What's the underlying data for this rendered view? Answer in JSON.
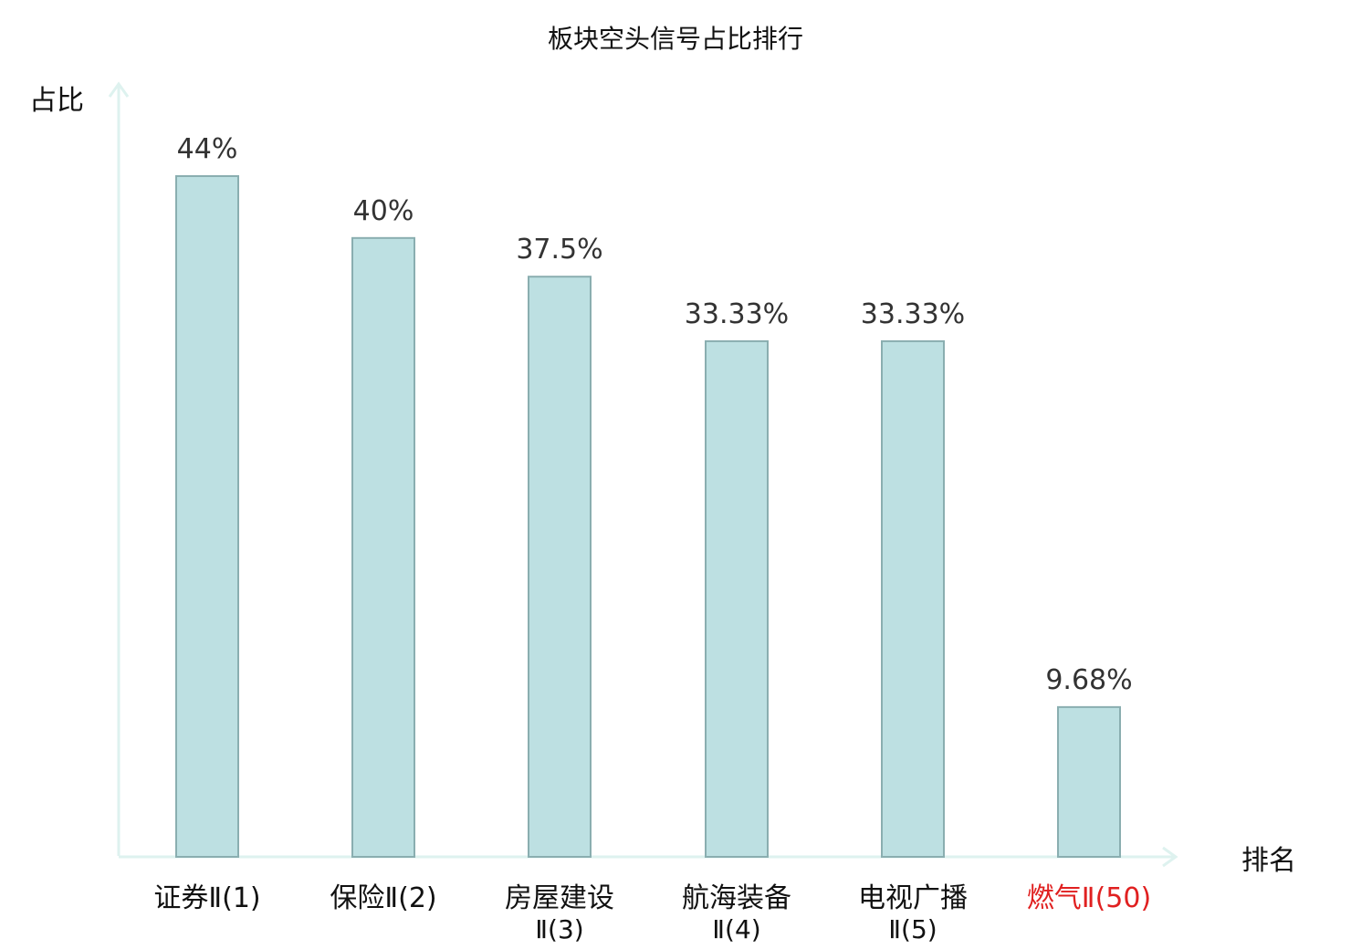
{
  "chart_data": {
    "type": "bar",
    "title": "板块空头信号占比排行",
    "ylabel": "占比",
    "xlabel": "排名",
    "ylim": [
      0,
      50
    ],
    "grid": false,
    "categories": [
      [
        "证券Ⅱ(1)"
      ],
      [
        "保险Ⅱ(2)"
      ],
      [
        "房屋建设",
        "Ⅱ(3)"
      ],
      [
        "航海装备",
        "Ⅱ(4)"
      ],
      [
        "电视广播",
        "Ⅱ(5)"
      ],
      [
        "燃气Ⅱ(50)"
      ]
    ],
    "values": [
      44,
      40,
      37.5,
      33.33,
      33.33,
      9.68
    ],
    "value_labels": [
      "44%",
      "40%",
      "37.5%",
      "33.33%",
      "33.33%",
      "9.68%"
    ],
    "highlight_index": 5
  },
  "colors": {
    "bar_fill": "#bde0e2",
    "bar_stroke": "#8aaeb0",
    "axis": "#def2ef",
    "text": "#111111",
    "value_text": "#333333",
    "highlight_text": "#e02020"
  }
}
